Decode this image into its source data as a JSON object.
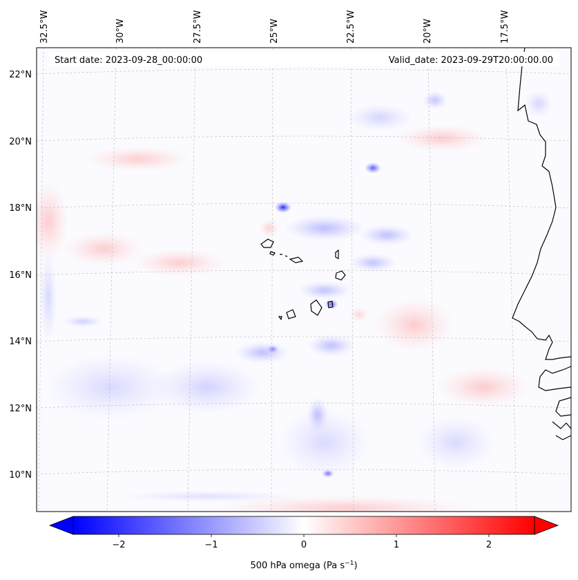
{
  "map": {
    "start_date_label": "Start date: 2023-09-28_00:00:00",
    "valid_date_label": "Valid_date: 2023-09-29T20:00:00.00",
    "lon_labels": [
      "32.5°W",
      "30°W",
      "27.5°W",
      "25°W",
      "22.5°W",
      "20°W",
      "17.5°W"
    ],
    "lat_labels": [
      "22°N",
      "20°N",
      "18°N",
      "16°N",
      "14°N",
      "12°N",
      "10°N"
    ]
  },
  "colorbar": {
    "ticks": [
      "−2",
      "−1",
      "0",
      "1",
      "2"
    ],
    "label_main": "500 hPa omega (Pa s",
    "label_exp": "−1",
    "label_close": ")",
    "colormap": "bwr",
    "range": [
      -2.5,
      2.5
    ],
    "color_low": "#0000ff",
    "color_mid": "#ffffff",
    "color_high": "#ff0000"
  }
}
